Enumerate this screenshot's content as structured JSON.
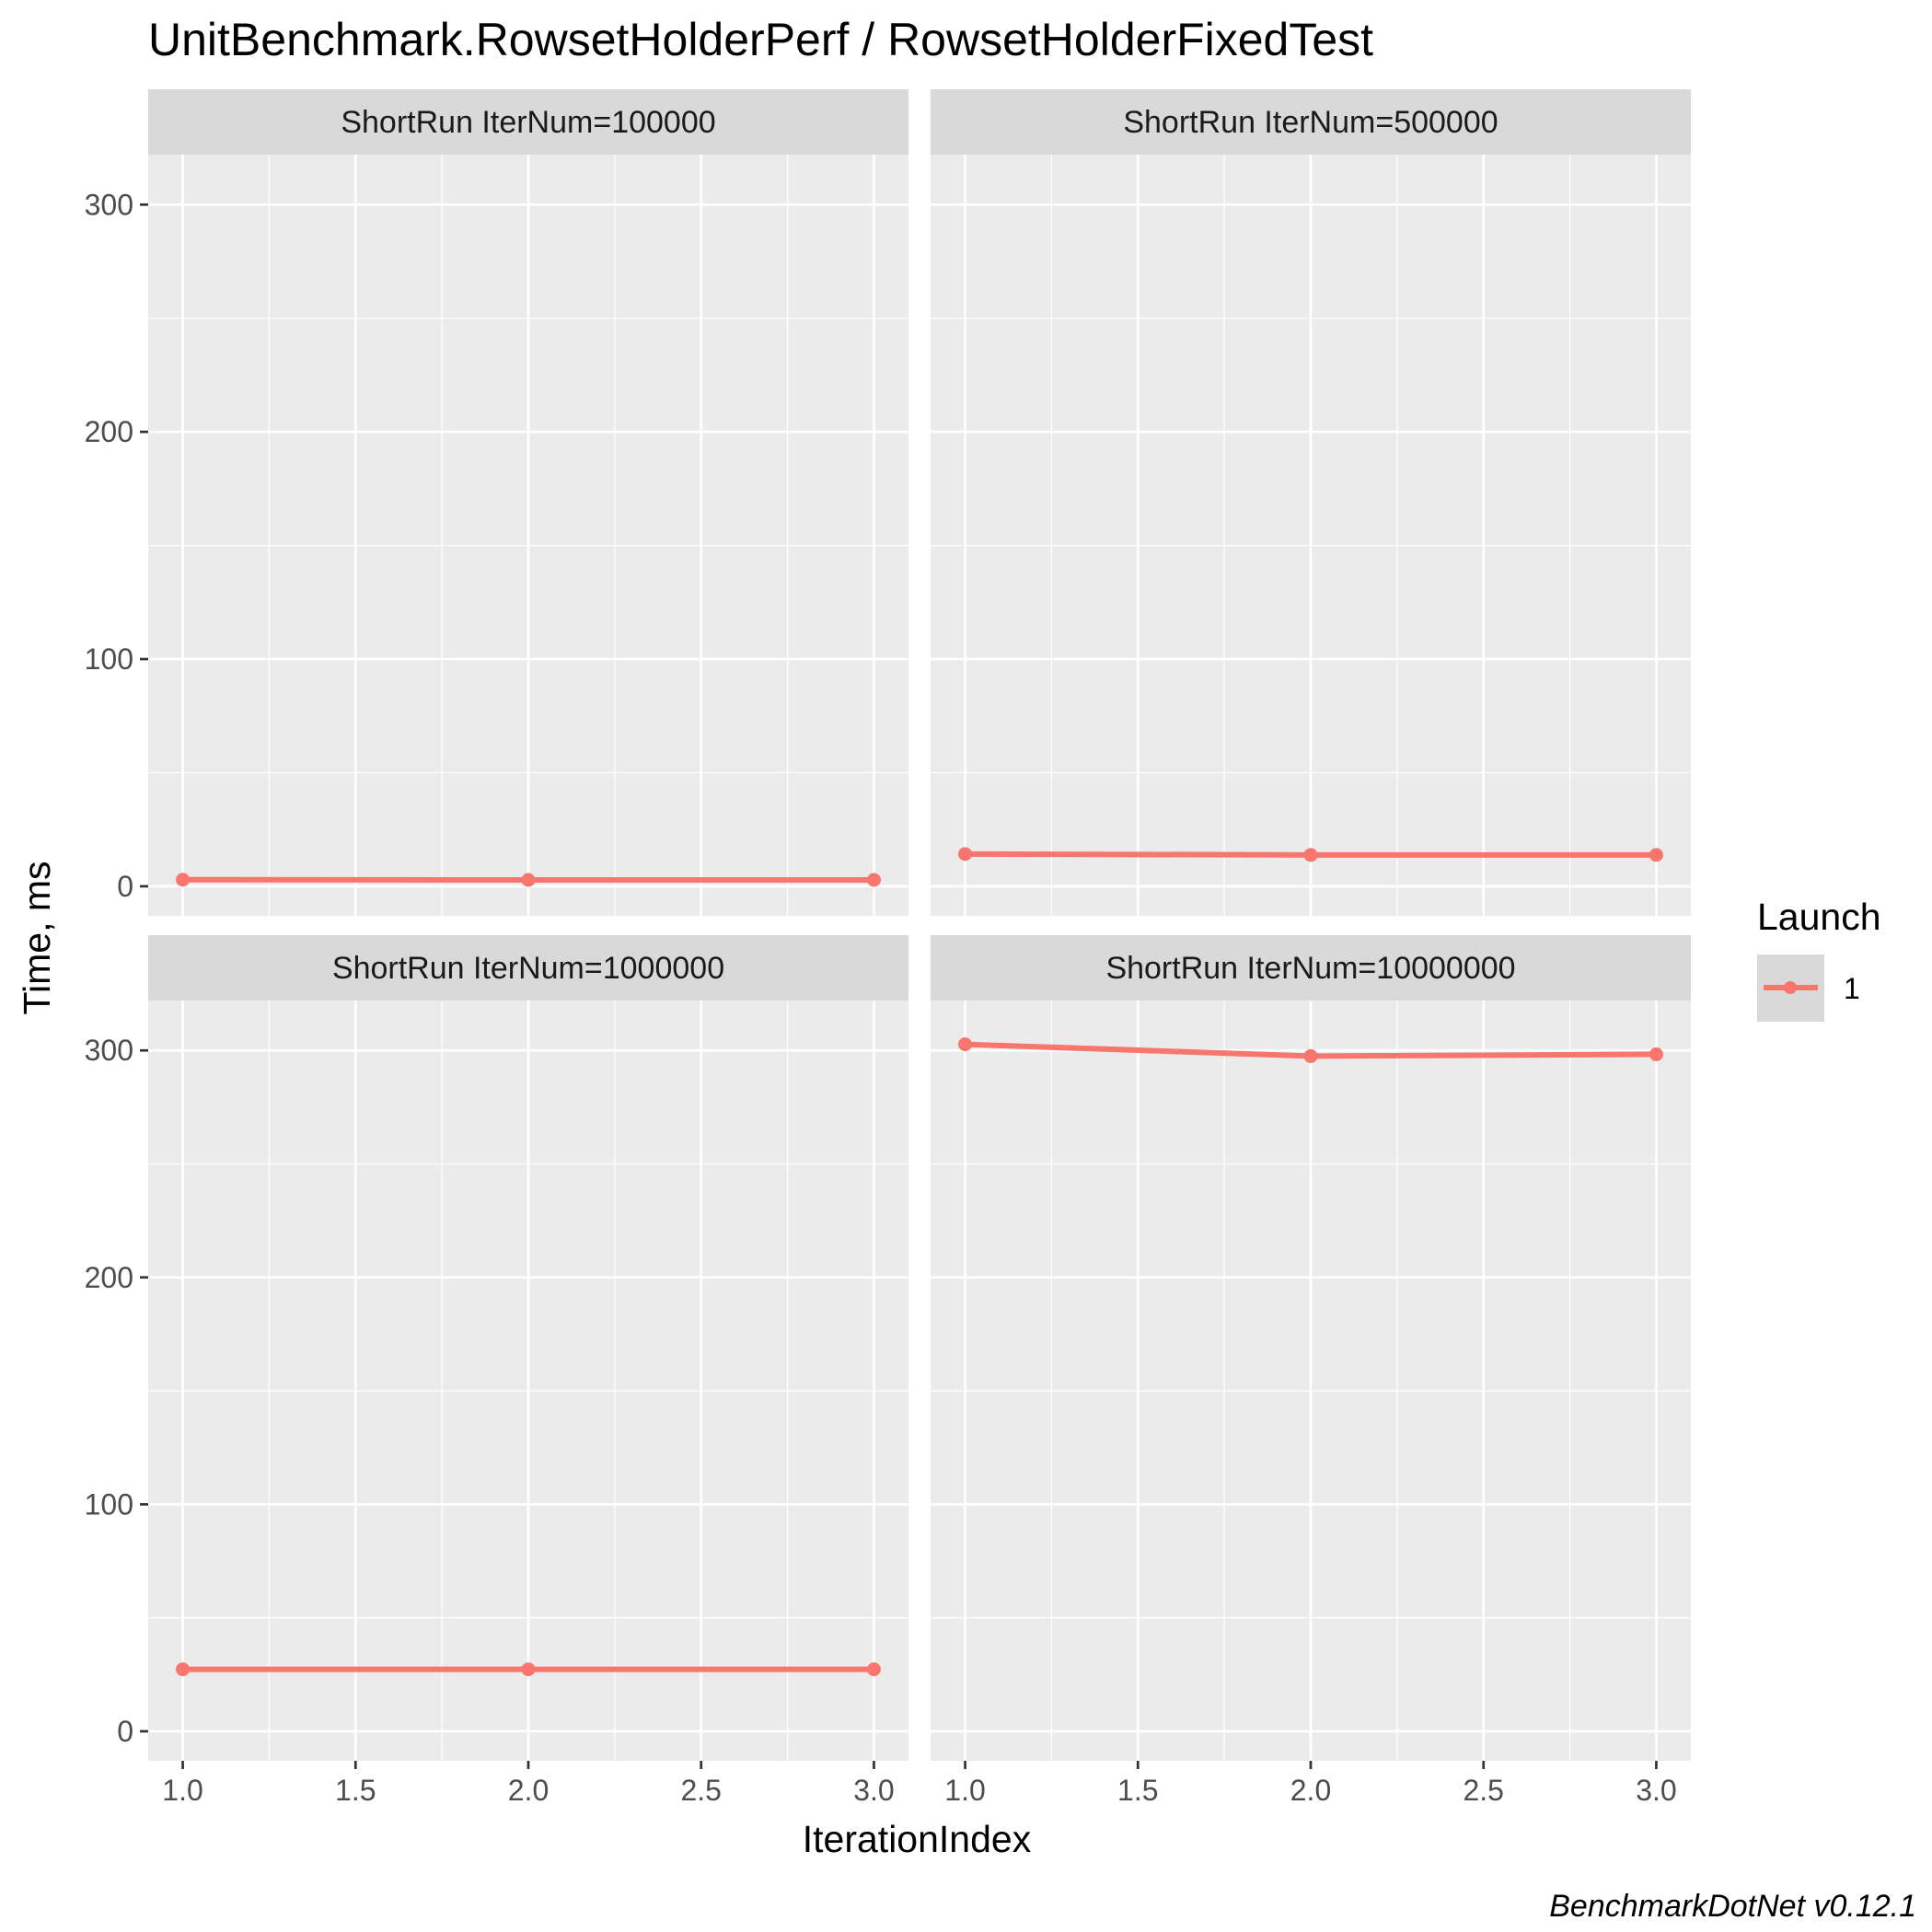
{
  "chart_data": {
    "type": "line",
    "title": "UnitBenchmark.RowsetHolderPerf / RowsetHolderFixedTest",
    "xlabel": "IterationIndex",
    "ylabel": "Time, ms",
    "caption": "BenchmarkDotNet v0.12.1",
    "xlim": [
      0.9,
      3.1
    ],
    "ylim": [
      -13,
      322
    ],
    "x_ticks": [
      "1.0",
      "1.5",
      "2.0",
      "2.5",
      "3.0"
    ],
    "x_tick_values": [
      1.0,
      1.5,
      2.0,
      2.5,
      3.0
    ],
    "y_ticks": [
      "0",
      "100",
      "200",
      "300"
    ],
    "y_tick_values": [
      0,
      100,
      200,
      300
    ],
    "grid": true,
    "legend": {
      "title": "Launch",
      "position": "right",
      "entries": [
        {
          "label": "1",
          "color": "#F8766D"
        }
      ]
    },
    "facets": [
      {
        "label": "ShortRun IterNum=100000",
        "series": [
          {
            "name": "1",
            "x": [
              1,
              2,
              3
            ],
            "y": [
              2.9,
              2.8,
              2.8
            ]
          }
        ]
      },
      {
        "label": "ShortRun IterNum=500000",
        "series": [
          {
            "name": "1",
            "x": [
              1,
              2,
              3
            ],
            "y": [
              14.2,
              13.8,
              13.8
            ]
          }
        ]
      },
      {
        "label": "ShortRun IterNum=1000000",
        "series": [
          {
            "name": "1",
            "x": [
              1,
              2,
              3
            ],
            "y": [
              27.3,
              27.3,
              27.3
            ]
          }
        ]
      },
      {
        "label": "ShortRun IterNum=10000000",
        "series": [
          {
            "name": "1",
            "x": [
              1,
              2,
              3
            ],
            "y": [
              302.7,
              297.5,
              298.3
            ]
          }
        ]
      }
    ]
  },
  "colors": {
    "series": "#F8766D",
    "panel": "#EBEBEB",
    "strip": "#D9D9D9",
    "grid": "#FFFFFF"
  }
}
